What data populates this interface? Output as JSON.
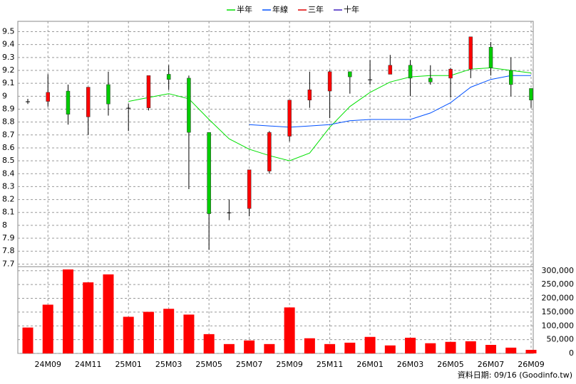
{
  "chart_data": {
    "type": "candlestick",
    "categories": [
      null,
      "24M09",
      null,
      "24M11",
      null,
      "25M01",
      null,
      "25M03",
      null,
      "25M05",
      null,
      "25M07",
      null,
      "25M09",
      null,
      "25M11",
      null,
      "26M01",
      null,
      "26M03",
      null,
      "26M05",
      null,
      "26M07",
      null,
      "26M09"
    ],
    "open": [
      8.96,
      8.96,
      9.04,
      8.84,
      9.09,
      8.91,
      8.91,
      9.17,
      9.14,
      8.72,
      8.1,
      8.13,
      8.42,
      8.69,
      8.97,
      9.04,
      9.19,
      9.13,
      9.17,
      9.24,
      9.14,
      9.14,
      9.21,
      9.38,
      9.2,
      9.06
    ],
    "high": [
      8.98,
      9.17,
      9.09,
      9.07,
      9.19,
      8.94,
      9.16,
      9.24,
      9.16,
      8.72,
      8.2,
      8.43,
      8.73,
      8.97,
      9.19,
      9.2,
      9.19,
      9.28,
      9.32,
      9.28,
      9.24,
      9.22,
      9.46,
      9.42,
      9.3,
      9.06
    ],
    "low": [
      8.94,
      8.92,
      8.78,
      8.7,
      8.85,
      8.73,
      8.89,
      9.05,
      8.28,
      7.81,
      8.04,
      8.07,
      8.4,
      8.65,
      8.91,
      8.83,
      9.02,
      9.09,
      9.17,
      9.0,
      9.09,
      8.99,
      9.14,
      9.16,
      9.0,
      8.91
    ],
    "close": [
      8.96,
      9.03,
      8.86,
      9.07,
      8.94,
      8.91,
      9.16,
      9.13,
      8.72,
      8.09,
      8.1,
      8.43,
      8.72,
      8.97,
      9.05,
      9.19,
      9.15,
      9.13,
      9.24,
      9.14,
      9.11,
      9.21,
      9.46,
      9.22,
      9.09,
      8.97
    ],
    "up_color": "#ff0000",
    "down_color": "#00cc00",
    "series": [
      {
        "name": "半年",
        "color": "#00e000",
        "values": [
          null,
          null,
          null,
          null,
          null,
          8.96,
          8.99,
          9.02,
          8.98,
          8.82,
          8.67,
          8.59,
          8.54,
          8.5,
          8.56,
          8.76,
          8.92,
          9.03,
          9.11,
          9.15,
          9.16,
          9.16,
          9.21,
          9.22,
          9.2,
          9.18
        ]
      },
      {
        "name": "年線",
        "color": "#0050ff",
        "values": [
          null,
          null,
          null,
          null,
          null,
          null,
          null,
          null,
          null,
          null,
          null,
          8.78,
          8.77,
          8.76,
          8.77,
          8.78,
          8.81,
          8.82,
          8.82,
          8.82,
          8.87,
          8.95,
          9.07,
          9.13,
          9.16,
          9.16
        ]
      },
      {
        "name": "三年",
        "color": "#e00000",
        "values": [
          null,
          null,
          null,
          null,
          null,
          null,
          null,
          null,
          null,
          null,
          null,
          null,
          null,
          null,
          null,
          null,
          null,
          null,
          null,
          null,
          null,
          null,
          null,
          null,
          null,
          null
        ]
      },
      {
        "name": "十年",
        "color": "#4020c0",
        "values": [
          null,
          null,
          null,
          null,
          null,
          null,
          null,
          null,
          null,
          null,
          null,
          null,
          null,
          null,
          null,
          null,
          null,
          null,
          null,
          null,
          null,
          null,
          null,
          null,
          null,
          null
        ]
      }
    ],
    "ylim": [
      7.68,
      9.58
    ],
    "yticks": [
      7.7,
      7.8,
      7.9,
      8,
      8.1,
      8.2,
      8.3,
      8.4,
      8.5,
      8.6,
      8.7,
      8.8,
      8.9,
      9,
      9.1,
      9.2,
      9.3,
      9.4,
      9.5
    ],
    "grid": true,
    "volume": {
      "type": "bar",
      "color": "#ff0000",
      "values": [
        94000,
        177000,
        305000,
        258000,
        287000,
        133000,
        151000,
        162000,
        141000,
        70000,
        34000,
        47000,
        34000,
        167000,
        55000,
        34000,
        39000,
        60000,
        29000,
        57000,
        37000,
        42000,
        44000,
        31000,
        21000,
        13000
      ],
      "ylim": [
        0,
        315000
      ],
      "yticks": [
        0,
        {
          "value": 50000,
          "label": "50,000"
        },
        {
          "value": 100000,
          "label": "100,000"
        },
        {
          "value": 150000,
          "label": "150,000"
        },
        {
          "value": 200000,
          "label": "200,000"
        },
        {
          "value": 250000,
          "label": "250,000"
        },
        {
          "value": 300000,
          "label": "300,000"
        }
      ]
    },
    "footer": "資料日期: 09/16 (Goodinfo.tw)"
  }
}
